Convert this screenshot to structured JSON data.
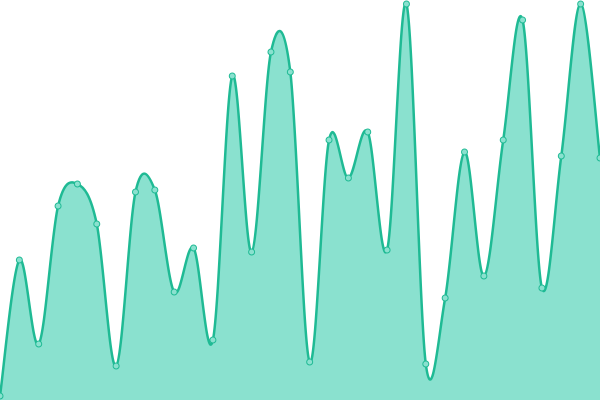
{
  "chart_data": {
    "type": "area",
    "x": [
      0,
      1,
      2,
      3,
      4,
      5,
      6,
      7,
      8,
      9,
      10,
      11,
      12,
      13,
      14,
      15,
      16,
      17,
      18,
      19,
      20,
      21,
      22,
      23,
      24,
      25,
      26,
      27,
      28,
      29,
      30,
      31
    ],
    "series": [
      {
        "color": "#1fba94",
        "fill": "#8ae1cf",
        "values": [
          1,
          35,
          14,
          48.5,
          54,
          44,
          8.5,
          52,
          52.5,
          27,
          38,
          15,
          81,
          37,
          87,
          82,
          9.5,
          65,
          55.5,
          67,
          37.5,
          99,
          9,
          25.5,
          62,
          31,
          65,
          95,
          28,
          61,
          99,
          60.5
        ]
      }
    ],
    "xlim": [
      0,
      31
    ],
    "ylim": [
      0,
      100
    ]
  }
}
